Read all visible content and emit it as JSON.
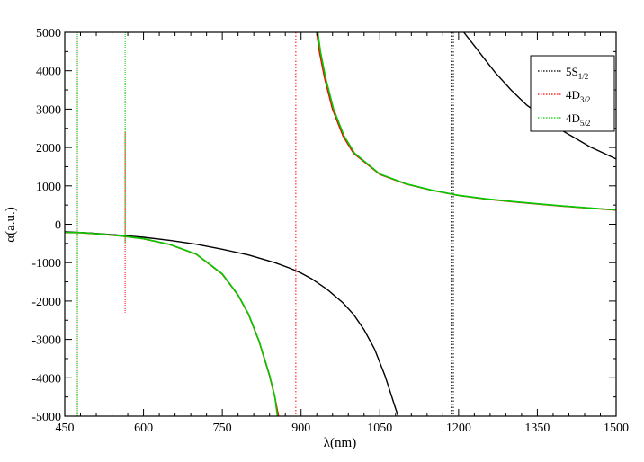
{
  "chart_data": {
    "type": "line",
    "xlabel": "λ(nm)",
    "ylabel": "α(a.u.)",
    "xlim": [
      450,
      1500
    ],
    "ylim": [
      -5000,
      5000
    ],
    "xticks": [
      450,
      600,
      750,
      900,
      1050,
      1200,
      1350,
      1500
    ],
    "xtick_labels": [
      "450",
      "600",
      "750",
      "900",
      "1050",
      "1200",
      "1350",
      "1500"
    ],
    "yticks": [
      -5000,
      -4000,
      -3000,
      -2000,
      -1000,
      0,
      1000,
      2000,
      3000,
      4000,
      5000
    ],
    "ytick_labels": [
      "-5000",
      "-4000",
      "-3000",
      "-2000",
      "-1000",
      "0",
      "1000",
      "2000",
      "3000",
      "4000",
      "5000"
    ],
    "grid": false,
    "legend_position": "top-right",
    "series": [
      {
        "name": "5S",
        "sub": "1/2",
        "color": "#000000",
        "x": [
          450,
          500,
          560,
          600,
          650,
          700,
          750,
          800,
          850,
          880,
          900,
          920,
          950,
          980,
          1000,
          1020,
          1040,
          1060,
          1080,
          1085,
          1210,
          1230,
          1250,
          1270,
          1300,
          1330,
          1360,
          1400,
          1450,
          1500
        ],
        "y": [
          -195,
          -230,
          -290,
          -340,
          -420,
          -520,
          -650,
          -800,
          -1000,
          -1150,
          -1270,
          -1420,
          -1700,
          -2050,
          -2350,
          -2750,
          -3250,
          -3950,
          -4800,
          -5000,
          5000,
          4650,
          4300,
          3950,
          3500,
          3100,
          2800,
          2420,
          2020,
          1700
        ],
        "breaks": [
          20
        ],
        "asymptotes": [
          1186,
          1190
        ]
      },
      {
        "name": "4D",
        "sub": "3/2",
        "color": "#ff0000",
        "x": [
          450,
          480,
          520,
          560,
          600,
          650,
          700,
          750,
          780,
          800,
          820,
          840,
          850,
          857,
          930,
          935,
          945,
          960,
          980,
          1000,
          1050,
          1100,
          1150,
          1200,
          1250,
          1300,
          1350,
          1400,
          1450,
          1500
        ],
        "y": [
          -215,
          -220,
          -260,
          -310,
          -380,
          -530,
          -780,
          -1300,
          -1850,
          -2350,
          -3050,
          -3950,
          -4500,
          -5000,
          5000,
          4500,
          3800,
          3000,
          2300,
          1850,
          1300,
          1050,
          880,
          750,
          660,
          590,
          530,
          470,
          420,
          370
        ],
        "breaks": [
          14
        ],
        "spikes": [
          {
            "x": 474,
            "y1": 4900,
            "y2": -5000
          },
          {
            "x": 565,
            "y1": 2400,
            "y2": -2300
          }
        ],
        "asymptotes": [
          890
        ]
      },
      {
        "name": "4D",
        "sub": "5/2",
        "color": "#00cc00",
        "x": [
          450,
          480,
          520,
          560,
          600,
          650,
          700,
          750,
          780,
          800,
          820,
          840,
          850,
          855,
          932,
          937,
          947,
          962,
          982,
          1002,
          1050,
          1100,
          1150,
          1200,
          1250,
          1300,
          1350,
          1400,
          1450,
          1500
        ],
        "y": [
          -210,
          -218,
          -258,
          -308,
          -378,
          -528,
          -775,
          -1290,
          -1840,
          -2340,
          -3040,
          -3930,
          -4480,
          -5000,
          5000,
          4500,
          3800,
          3000,
          2300,
          1850,
          1310,
          1055,
          885,
          755,
          665,
          595,
          535,
          475,
          425,
          375
        ],
        "breaks": [
          14
        ],
        "spikes": [
          {
            "x": 474,
            "y1": 5000,
            "y2": -5000
          },
          {
            "x": 565,
            "y1": 5000,
            "y2": -500
          }
        ],
        "asymptotes": []
      }
    ]
  }
}
